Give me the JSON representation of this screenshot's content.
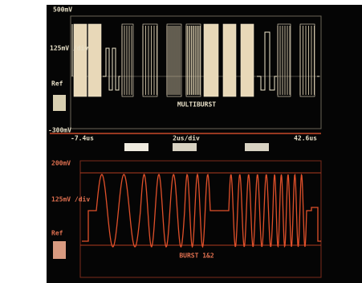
{
  "top": {
    "scale_top": "500mV",
    "scale_mid": "125mV /div",
    "ref": "Ref",
    "scale_bottom": "-300mV",
    "label": "MULTIBURST"
  },
  "time": {
    "start": "-7.4us",
    "div": "2us/div",
    "end": "42.6us"
  },
  "bottom": {
    "scale_top": "200mV",
    "scale_mid": "125mV /div",
    "ref": "Ref",
    "label": "BURST 1&2"
  }
}
